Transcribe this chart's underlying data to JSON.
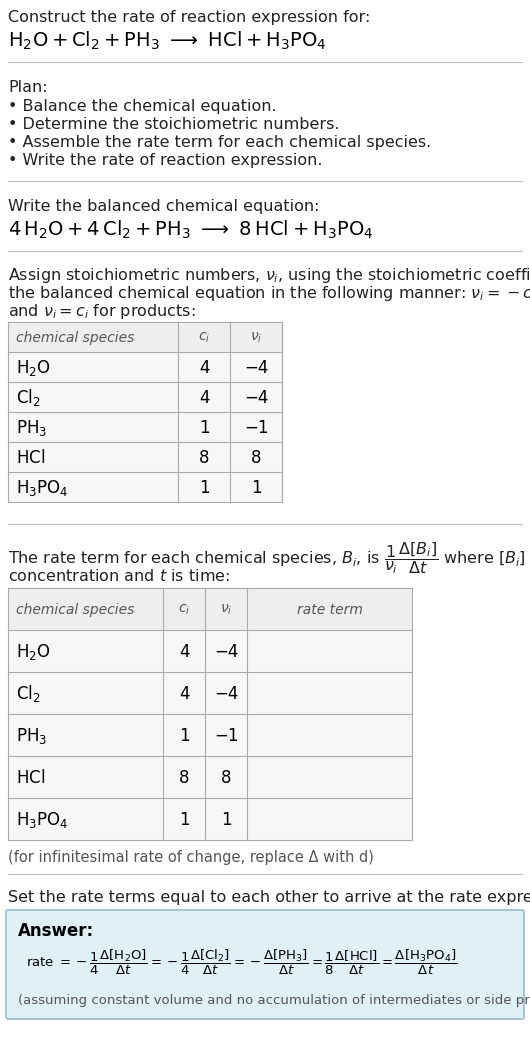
{
  "bg_color": "#ffffff",
  "title_text": "Construct the rate of reaction expression for:",
  "plan_header": "Plan:",
  "plan_items": [
    "• Balance the chemical equation.",
    "• Determine the stoichiometric numbers.",
    "• Assemble the rate term for each chemical species.",
    "• Write the rate of reaction expression."
  ],
  "balanced_header": "Write the balanced chemical equation:",
  "table1_rows": [
    [
      "H_2O",
      "4",
      "−4"
    ],
    [
      "Cl_2",
      "4",
      "−4"
    ],
    [
      "PH_3",
      "1",
      "−1"
    ],
    [
      "HCl",
      "8",
      "8"
    ],
    [
      "H_3PO_4",
      "1",
      "1"
    ]
  ],
  "table2_rows": [
    [
      "H_2O",
      "4",
      "−4"
    ],
    [
      "Cl_2",
      "4",
      "−4"
    ],
    [
      "PH_3",
      "1",
      "−1"
    ],
    [
      "HCl",
      "8",
      "8"
    ],
    [
      "H_3PO_4",
      "1",
      "1"
    ]
  ],
  "infinitesimal_note": "(for infinitesimal rate of change, replace Δ with d)",
  "set_equal_text": "Set the rate terms equal to each other to arrive at the rate expression:",
  "answer_bg": "#dff0f7",
  "answer_border": "#9bbccc",
  "assuming_note": "(assuming constant volume and no accumulation of intermediates or side products)"
}
